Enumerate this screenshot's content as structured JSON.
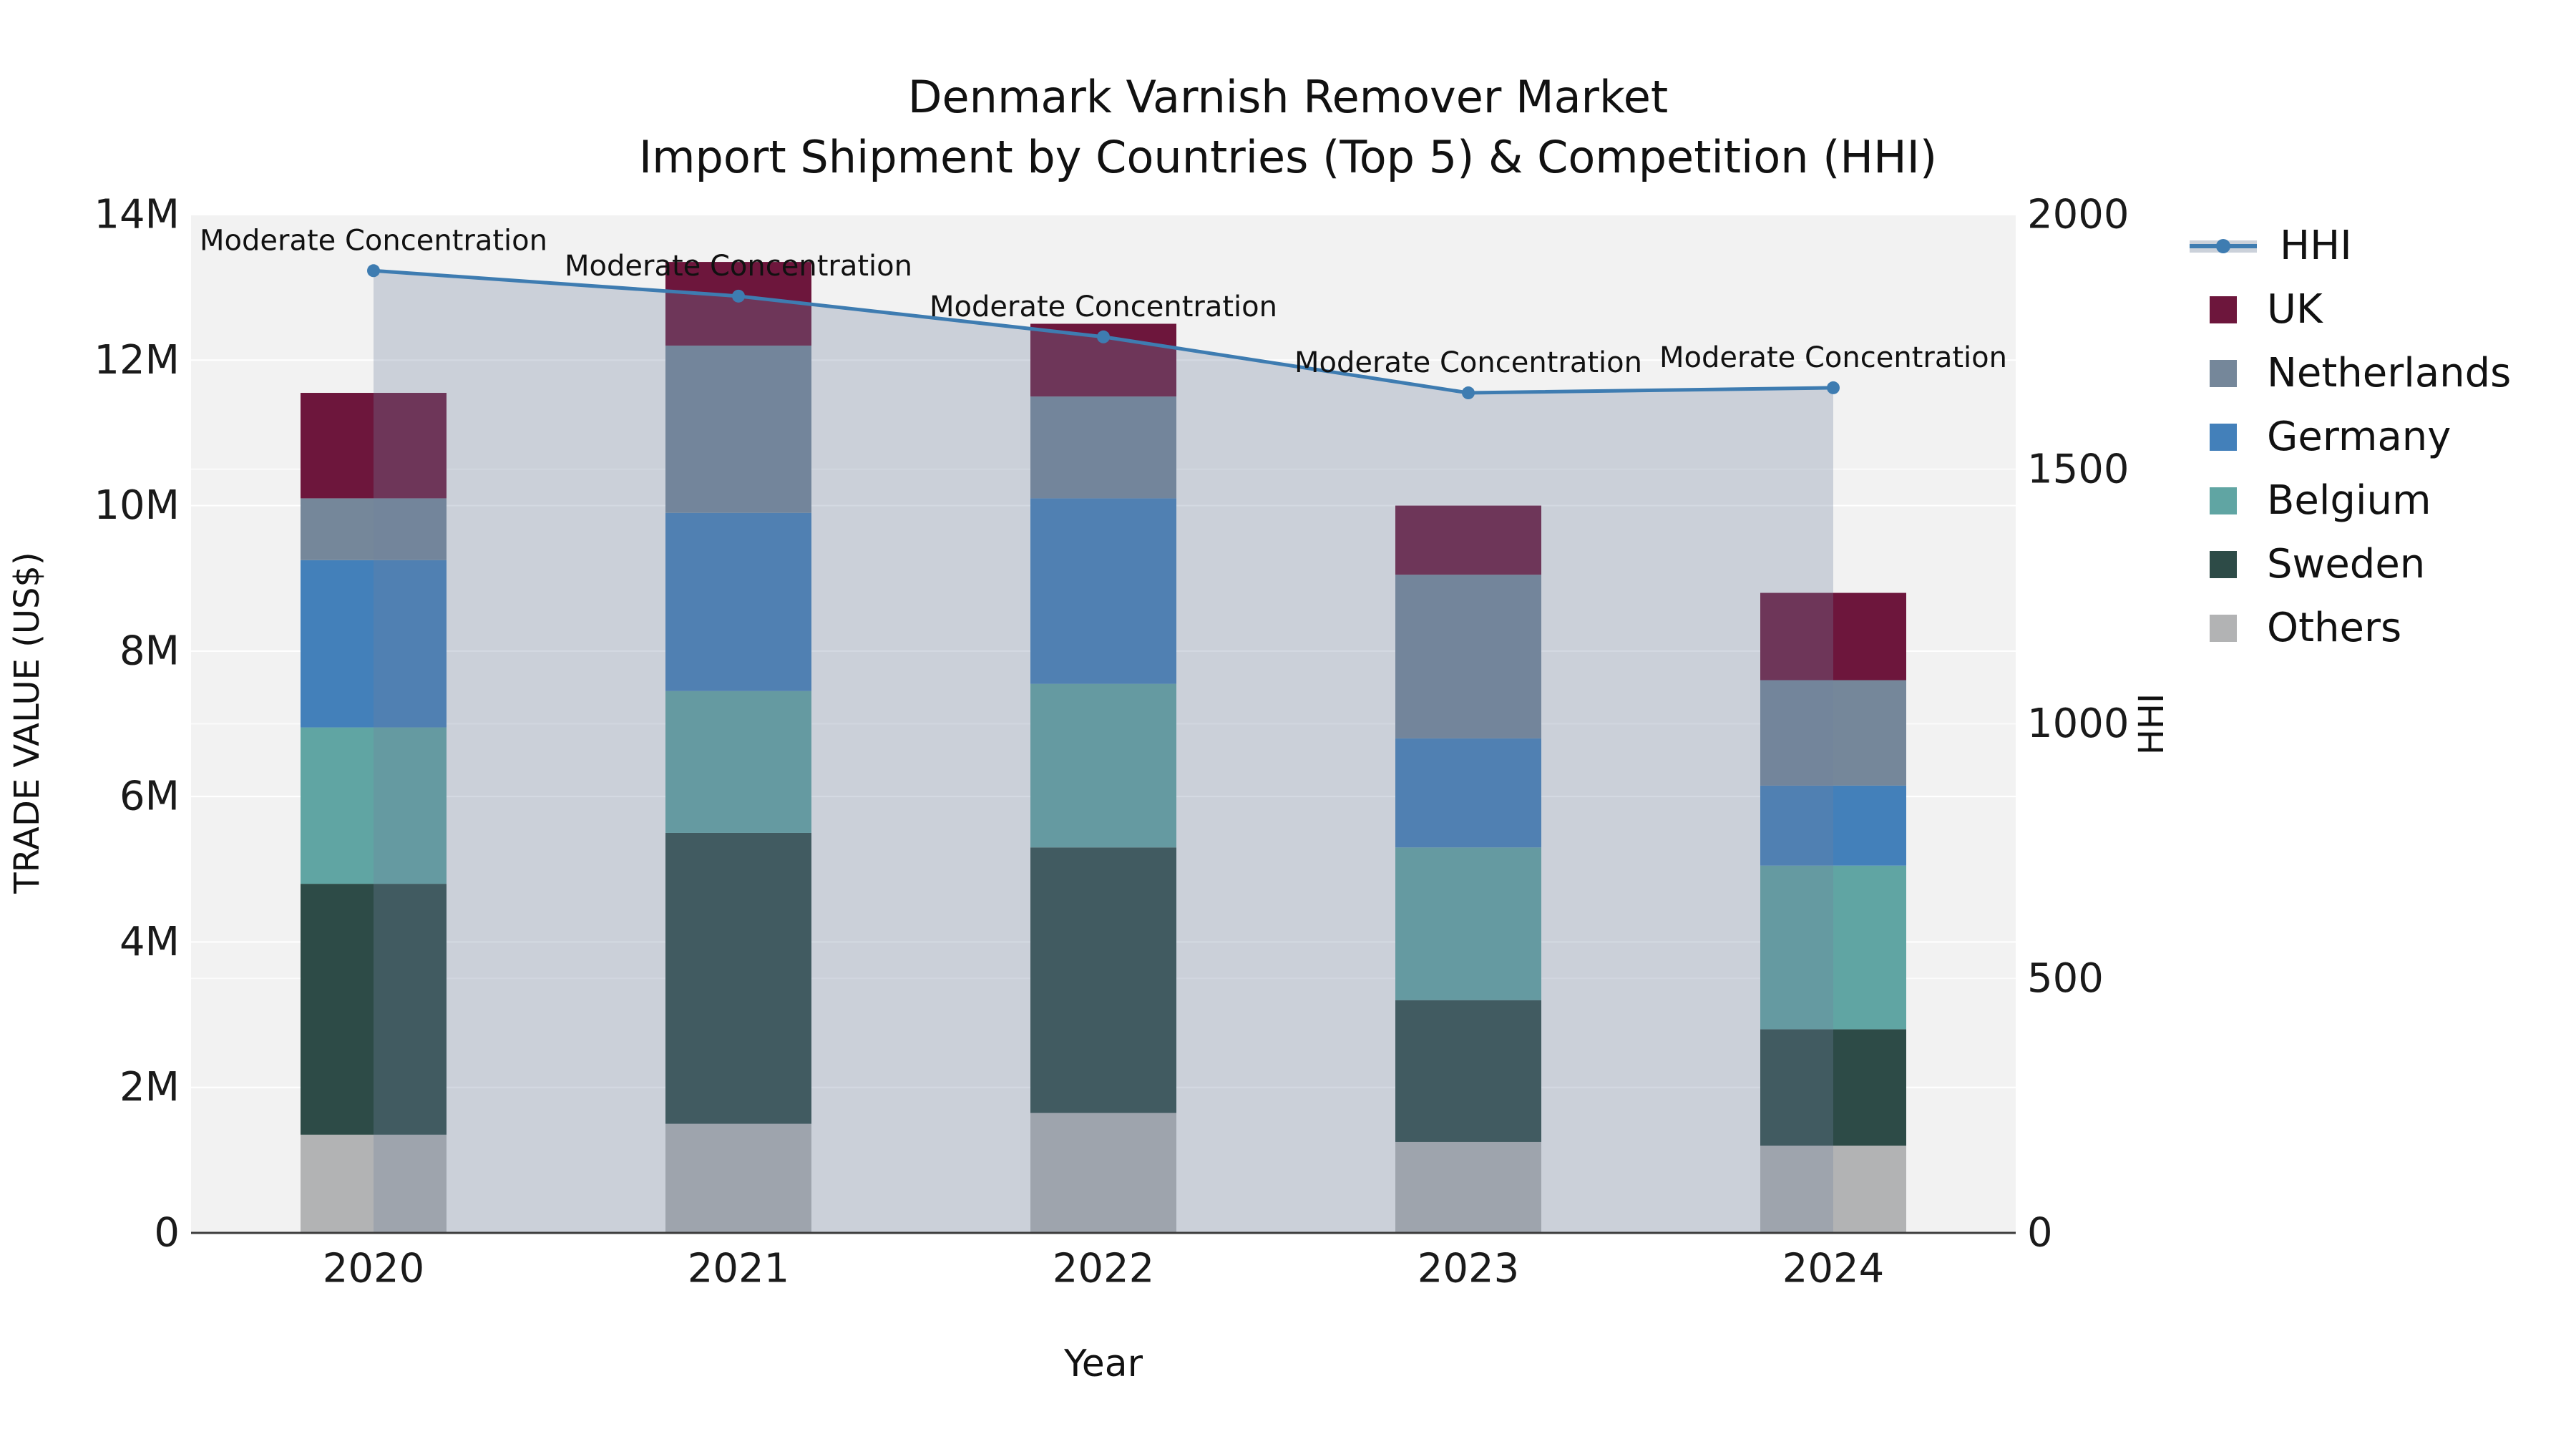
{
  "title": {
    "line1": "Denmark Varnish Remover Market",
    "line2": "Import Shipment by Countries (Top 5) & Competition (HHI)"
  },
  "axes": {
    "x_label": "Year",
    "y_left_label": "TRADE VALUE (US$)",
    "y_right_label": "HHI",
    "y_left_tick_labels": [
      "0",
      "2M",
      "4M",
      "6M",
      "8M",
      "10M",
      "12M",
      "14M"
    ],
    "y_right_tick_labels": [
      "0",
      "500",
      "1000",
      "1500",
      "2000"
    ]
  },
  "legend": {
    "items": [
      {
        "label": "HHI",
        "type": "line",
        "color": "#3e7cb1"
      },
      {
        "label": "UK",
        "type": "swatch",
        "color": "#6d163c"
      },
      {
        "label": "Netherlands",
        "type": "swatch",
        "color": "#75879a"
      },
      {
        "label": "Germany",
        "type": "swatch",
        "color": "#4380ba"
      },
      {
        "label": "Belgium",
        "type": "swatch",
        "color": "#60a5a3"
      },
      {
        "label": "Sweden",
        "type": "swatch",
        "color": "#2d4b47"
      },
      {
        "label": "Others",
        "type": "swatch",
        "color": "#b2b3b4"
      }
    ]
  },
  "chart_data": {
    "type": "bar",
    "subtype": "stacked-bars-with-line-overlay",
    "categories": [
      "2020",
      "2021",
      "2022",
      "2023",
      "2024"
    ],
    "values_unit": "million US$",
    "stack_order_bottom_to_top": [
      "Others",
      "Sweden",
      "Belgium",
      "Germany",
      "Netherlands",
      "UK"
    ],
    "series": [
      {
        "name": "UK",
        "color": "#6d163c",
        "values": [
          1.45,
          1.15,
          1.0,
          0.95,
          1.2
        ]
      },
      {
        "name": "Netherlands",
        "color": "#75879a",
        "values": [
          0.85,
          2.3,
          1.4,
          2.25,
          1.45
        ]
      },
      {
        "name": "Germany",
        "color": "#4380ba",
        "values": [
          2.3,
          2.45,
          2.55,
          1.5,
          1.1
        ]
      },
      {
        "name": "Belgium",
        "color": "#60a5a3",
        "values": [
          2.15,
          1.95,
          2.25,
          2.1,
          2.25
        ]
      },
      {
        "name": "Sweden",
        "color": "#2d4b47",
        "values": [
          3.45,
          4.0,
          3.65,
          1.95,
          1.6
        ]
      },
      {
        "name": "Others",
        "color": "#b2b3b4",
        "values": [
          1.35,
          1.5,
          1.65,
          1.25,
          1.2
        ]
      }
    ],
    "bar_totals": [
      11.55,
      13.35,
      12.5,
      10.0,
      8.8
    ],
    "line_series": {
      "name": "HHI",
      "color": "#3e7cb1",
      "area_fill_color": "#6f82a0",
      "area_fill_opacity": 0.3,
      "values": [
        1890,
        1840,
        1760,
        1650,
        1660
      ]
    },
    "annotations": [
      {
        "x": "2020",
        "text": "Moderate Concentration"
      },
      {
        "x": "2021",
        "text": "Moderate Concentration"
      },
      {
        "x": "2022",
        "text": "Moderate Concentration"
      },
      {
        "x": "2023",
        "text": "Moderate Concentration"
      },
      {
        "x": "2024",
        "text": "Moderate Concentration"
      }
    ],
    "ylim_left": [
      0,
      14
    ],
    "ylim_right": [
      0,
      2000
    ],
    "y_left_ticks": [
      0,
      2,
      4,
      6,
      8,
      10,
      12,
      14
    ],
    "y_right_ticks": [
      0,
      500,
      1000,
      1500,
      2000
    ],
    "grid": true,
    "plot_bg_color": "#f2f2f2",
    "grid_color": "#ffffff",
    "legend_position": "outside-right-top"
  }
}
